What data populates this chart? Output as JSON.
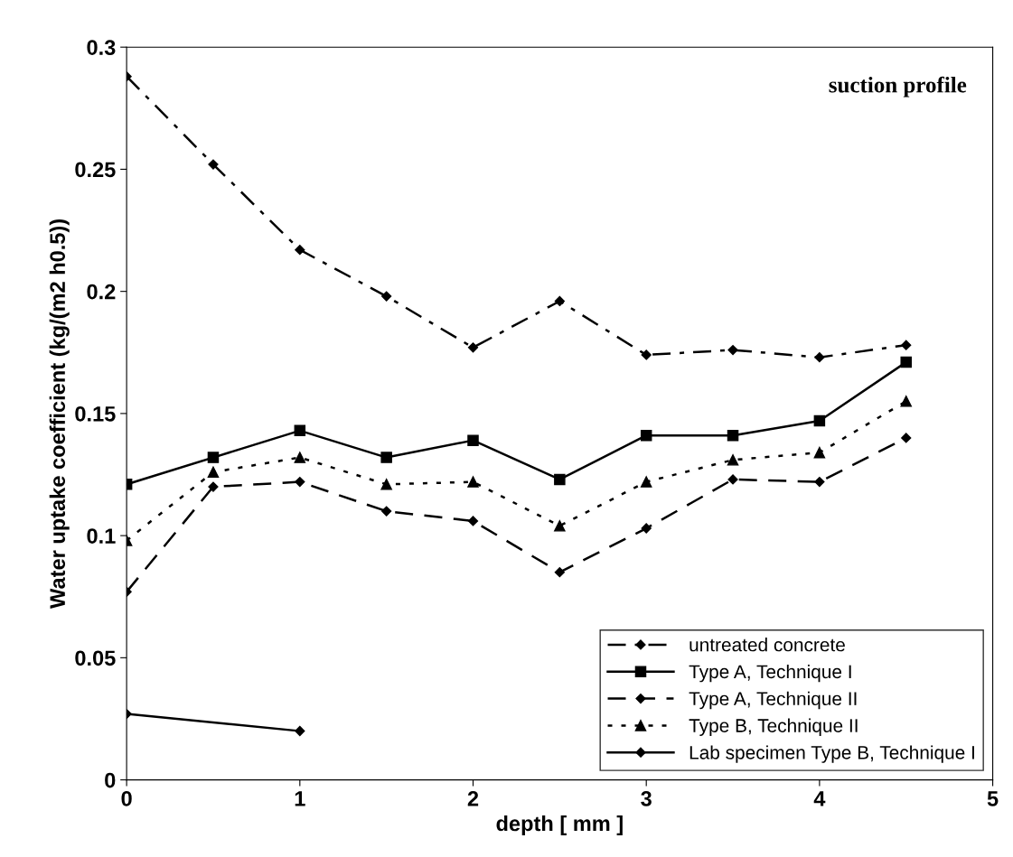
{
  "chart_data": {
    "type": "line",
    "xlabel": "depth [ mm ]",
    "ylabel": "Water uptake coefficient (kg/(m2 h0.5))",
    "annotations": [
      "suction profile"
    ],
    "xlim": [
      0,
      5
    ],
    "xticks": [
      0,
      1,
      2,
      3,
      4,
      5
    ],
    "ylim": [
      0,
      0.3
    ],
    "yticks": [
      0,
      0.05,
      0.1,
      0.15,
      0.2,
      0.25,
      0.3
    ],
    "grid": false,
    "legend": "bottom right",
    "series": [
      {
        "name": "untreated concrete",
        "color": "#000000",
        "marker": "diamond",
        "line_style": "dashdot",
        "x": [
          0,
          0.5,
          1,
          1.5,
          2,
          2.5,
          3,
          3.5,
          4,
          4.5
        ],
        "values": [
          0.288,
          0.252,
          0.217,
          0.198,
          0.177,
          0.196,
          0.174,
          0.176,
          0.173,
          0.178
        ]
      },
      {
        "name": "Type A, Technique I",
        "color": "#000000",
        "marker": "square",
        "line_style": "solid",
        "x": [
          0,
          0.5,
          1,
          1.5,
          2,
          2.5,
          3,
          3.5,
          4,
          4.5
        ],
        "values": [
          0.121,
          0.132,
          0.143,
          0.132,
          0.139,
          0.123,
          0.141,
          0.141,
          0.147,
          0.171
        ]
      },
      {
        "name": "Type A, Technique II",
        "color": "#000000",
        "marker": "diamond",
        "line_style": "dashed",
        "x": [
          0,
          0.5,
          1,
          1.5,
          2,
          2.5,
          3,
          3.5,
          4,
          4.5
        ],
        "values": [
          0.077,
          0.12,
          0.122,
          0.11,
          0.106,
          0.085,
          0.103,
          0.123,
          0.122,
          0.14
        ]
      },
      {
        "name": "Type B, Technique II",
        "color": "#000000",
        "marker": "triangle",
        "line_style": "dotted",
        "x": [
          0,
          0.5,
          1,
          1.5,
          2,
          2.5,
          3,
          3.5,
          4,
          4.5
        ],
        "values": [
          0.098,
          0.126,
          0.132,
          0.121,
          0.122,
          0.104,
          0.122,
          0.131,
          0.134,
          0.155
        ]
      },
      {
        "name": "Lab specimen Type B, Technique I",
        "color": "#000000",
        "marker": "diamond",
        "line_style": "solid",
        "x": [
          0,
          1
        ],
        "values": [
          0.027,
          0.02
        ]
      }
    ]
  }
}
